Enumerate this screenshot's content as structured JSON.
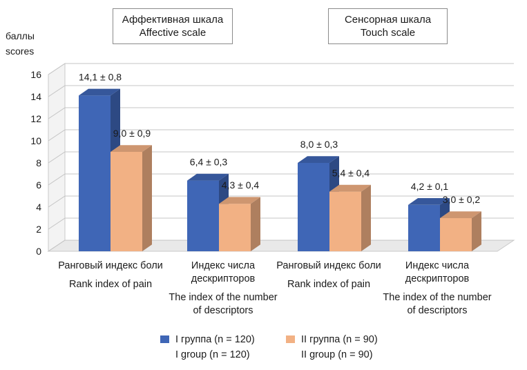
{
  "scale_boxes": {
    "affective": {
      "ru": "Аффективная шкала",
      "en": "Affective scale"
    },
    "touch": {
      "ru": "Сенсорная шкала",
      "en": "Touch scale"
    }
  },
  "y_axis": {
    "label_ru": "баллы",
    "label_en": "scores"
  },
  "colors": {
    "group1": "#3f66b6",
    "group2": "#f2b184"
  },
  "chart_data": {
    "type": "bar",
    "ylim": [
      0,
      16
    ],
    "yticks": [
      0,
      2,
      4,
      6,
      8,
      10,
      12,
      14,
      16
    ],
    "grid": true,
    "categories": [
      {
        "ru": "Ранговый индекс боли",
        "en": "Rank index of pain"
      },
      {
        "ru": "Индекс числа дескрипторов",
        "en": "The index of the number of descriptors"
      },
      {
        "ru": "Ранговый индекс боли",
        "en": "Rank index of pain"
      },
      {
        "ru": "Индекс числа дескрипторов",
        "en": "The index of the number of descriptors"
      }
    ],
    "series": [
      {
        "name_ru": "I группа (n = 120)",
        "name_en": "I group (n = 120)",
        "values": [
          14.1,
          6.4,
          8.0,
          4.2
        ],
        "labels": [
          "14,1 ± 0,8",
          "6,4 ± 0,3",
          "8,0 ± 0,3",
          "4,2 ± 0,1"
        ]
      },
      {
        "name_ru": "II группа (n = 90)",
        "name_en": "II group (n = 90)",
        "values": [
          9.0,
          4.3,
          5.4,
          3.0
        ],
        "labels": [
          "9,0 ± 0,9",
          "4,3 ± 0,4",
          "5,4 ± 0,4",
          "3,0 ± 0,2"
        ]
      }
    ]
  }
}
